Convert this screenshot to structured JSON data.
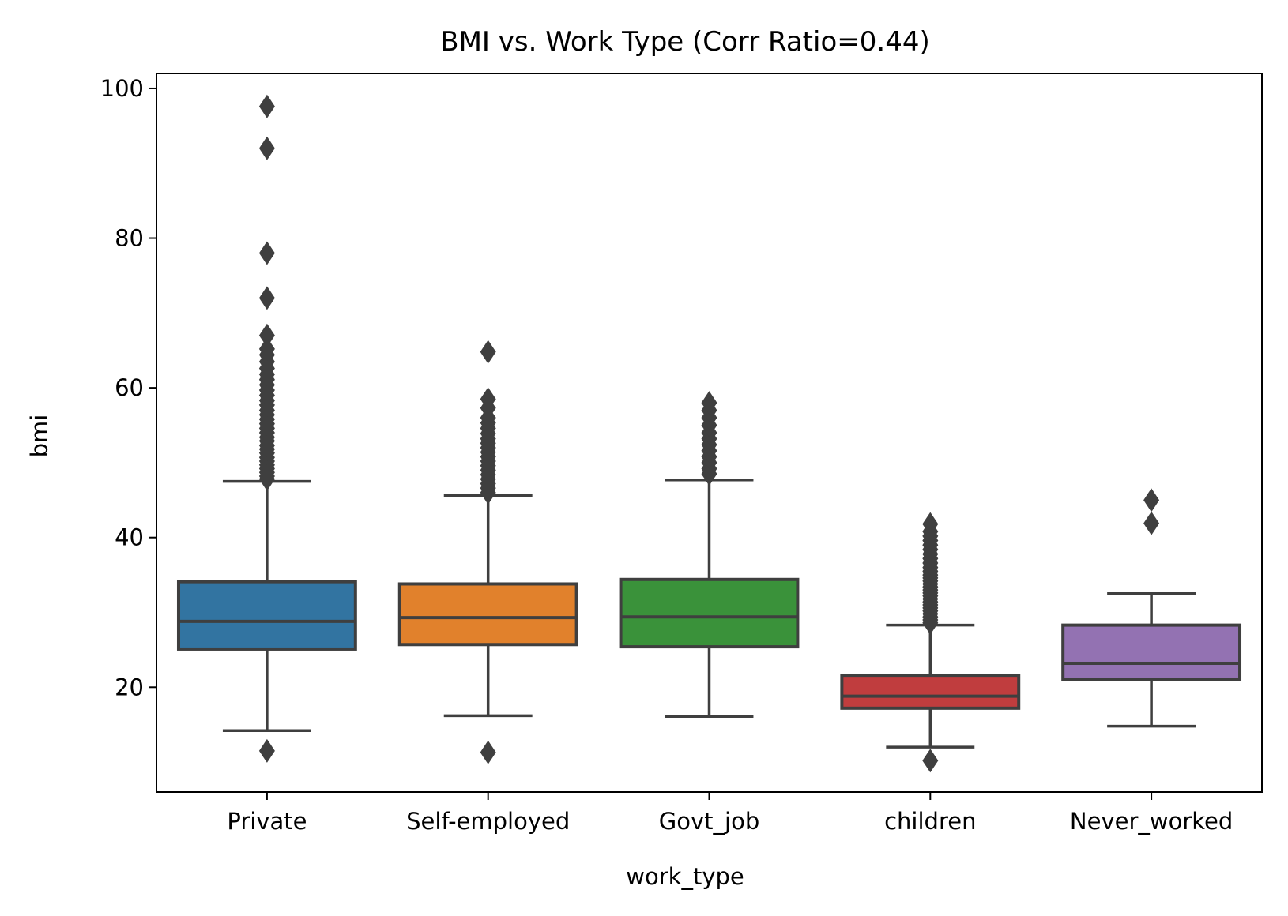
{
  "chart_data": {
    "type": "box",
    "title": "BMI vs. Work Type (Corr Ratio=0.44)",
    "xlabel": "work_type",
    "ylabel": "bmi",
    "ylim": [
      6,
      102
    ],
    "yticks": [
      20,
      40,
      60,
      80,
      100
    ],
    "grid": false,
    "legend": "none",
    "categories": [
      "Private",
      "Self-employed",
      "Govt_job",
      "children",
      "Never_worked"
    ],
    "boxes": [
      {
        "category": "Private",
        "color": "#3274a1",
        "whisker_low": 14.2,
        "q1": 25.1,
        "median": 28.8,
        "q3": 34.1,
        "whisker_high": 47.5,
        "outliers": [
          11.5,
          47.8,
          48.2,
          48.7,
          49.2,
          49.7,
          50.2,
          50.7,
          51.3,
          51.8,
          52.3,
          52.9,
          53.4,
          54.0,
          54.6,
          55.2,
          55.8,
          56.4,
          57.0,
          57.7,
          58.3,
          59.0,
          59.7,
          60.4,
          61.1,
          61.8,
          62.6,
          63.5,
          64.4,
          65.2,
          67.0,
          72.0,
          78.0,
          92.0,
          97.6
        ]
      },
      {
        "category": "Self-employed",
        "color": "#e1812c",
        "whisker_low": 16.2,
        "q1": 25.7,
        "median": 29.3,
        "q3": 33.8,
        "whisker_high": 45.6,
        "outliers": [
          11.3,
          46.0,
          46.6,
          47.2,
          47.8,
          48.4,
          49.0,
          49.6,
          50.2,
          50.8,
          51.4,
          52.0,
          52.6,
          53.2,
          53.9,
          54.6,
          55.3,
          56.0,
          57.3,
          58.5,
          64.8
        ]
      },
      {
        "category": "Govt_job",
        "color": "#3a923a",
        "whisker_low": 16.1,
        "q1": 25.4,
        "median": 29.4,
        "q3": 34.4,
        "whisker_high": 47.7,
        "outliers": [
          48.5,
          49.2,
          50.0,
          50.8,
          51.6,
          52.4,
          53.2,
          54.0,
          55.0,
          56.0,
          57.0,
          58.0
        ]
      },
      {
        "category": "children",
        "color": "#c03d3e",
        "whisker_low": 12.0,
        "q1": 17.2,
        "median": 18.8,
        "q3": 21.6,
        "whisker_high": 28.3,
        "outliers": [
          10.2,
          28.6,
          29.0,
          29.4,
          29.8,
          30.2,
          30.6,
          31.0,
          31.4,
          31.8,
          32.2,
          32.6,
          33.0,
          33.4,
          33.8,
          34.2,
          34.6,
          35.0,
          35.5,
          36.0,
          36.6,
          37.2,
          37.8,
          38.4,
          39.0,
          39.6,
          40.2,
          40.8,
          41.8
        ]
      },
      {
        "category": "Never_worked",
        "color": "#9372b2",
        "whisker_low": 14.8,
        "q1": 21.0,
        "median": 23.2,
        "q3": 28.3,
        "whisker_high": 32.5,
        "outliers": [
          41.9,
          45.0
        ]
      }
    ]
  }
}
